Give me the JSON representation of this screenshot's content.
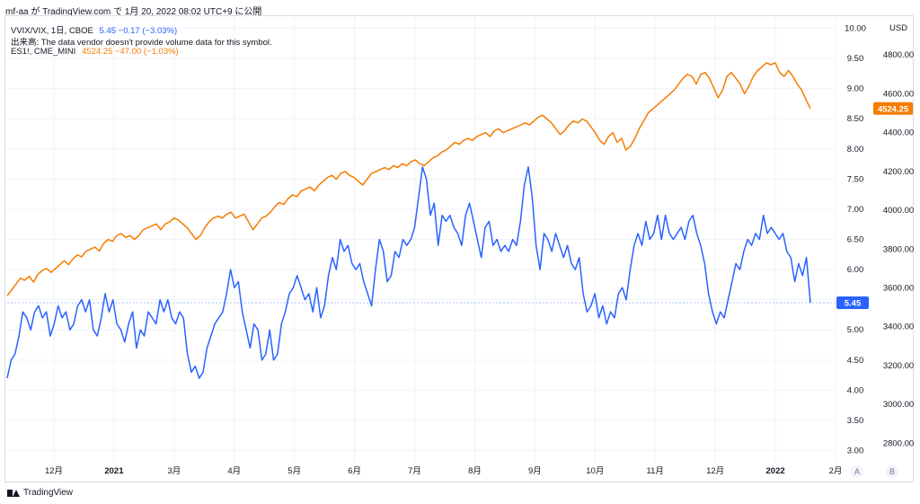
{
  "header": {
    "published": "mf-aa が TradingView.com で 1月 20, 2022 08:02 UTC+9 に公開"
  },
  "legend": {
    "vvix_symbol": "VVIX/VIX, 1日, CBOE",
    "vvix_values": "5.45 −0.17 (−3.03%)",
    "volume_note": "出来高: The data vendor doesn't provide volume data for this symbol.",
    "es_symbol": "ES1!, CME_MINI",
    "es_values": "4524.25 −47.00 (−1.03%)"
  },
  "footer": {
    "brand": "TradingView"
  },
  "buttons": {
    "auto": "A",
    "log": "B"
  },
  "colors": {
    "vvix": "#2962ff",
    "es": "#f57c00",
    "grid": "#f0f3fa"
  },
  "chart_data": {
    "type": "line",
    "x_tick_labels": [
      "12月",
      "2021",
      "3月",
      "4月",
      "5月",
      "6月",
      "7月",
      "8月",
      "9月",
      "10月",
      "11月",
      "12月",
      "2022",
      "2月"
    ],
    "left_axis_labels": [
      "10.00",
      "9.50",
      "9.00",
      "8.50",
      "8.00",
      "7.50",
      "7.00",
      "6.50",
      "6.00",
      "5.50",
      "5.00",
      "4.50",
      "4.00",
      "3.50",
      "3.00"
    ],
    "right_axis_labels": [
      "4800.00",
      "4600.00",
      "4400.00",
      "4200.00",
      "4000.00",
      "3800.00",
      "3600.00",
      "3400.00",
      "3200.00",
      "3000.00",
      "2800.00"
    ],
    "right_axis_unit": "USD",
    "left_ylim": [
      2.8,
      10.2
    ],
    "right_ylim": [
      2700,
      5000
    ],
    "last_values": {
      "vvix": "5.45",
      "es": "4524.25"
    },
    "series": [
      {
        "key": "vvix",
        "values": [
          4.2,
          4.5,
          4.6,
          4.9,
          5.3,
          5.2,
          5.0,
          5.3,
          5.4,
          5.2,
          5.3,
          4.9,
          5.1,
          5.4,
          5.2,
          5.3,
          5.0,
          5.1,
          5.4,
          5.5,
          5.3,
          5.5,
          5.0,
          4.9,
          5.2,
          5.6,
          5.3,
          5.5,
          5.1,
          5.0,
          4.8,
          5.1,
          5.3,
          4.7,
          5.0,
          4.9,
          5.3,
          5.2,
          5.1,
          5.5,
          5.3,
          5.5,
          5.2,
          5.1,
          5.3,
          5.2,
          4.6,
          4.3,
          4.4,
          4.2,
          4.3,
          4.7,
          4.9,
          5.1,
          5.2,
          5.3,
          5.6,
          6.0,
          5.7,
          5.8,
          5.3,
          5.0,
          4.7,
          5.1,
          5.0,
          4.5,
          4.6,
          5.0,
          4.5,
          4.6,
          5.1,
          5.3,
          5.6,
          5.7,
          5.9,
          5.7,
          5.5,
          5.6,
          5.3,
          5.7,
          5.2,
          5.4,
          5.9,
          6.2,
          6.0,
          6.5,
          6.3,
          6.4,
          6.1,
          6.0,
          6.1,
          5.8,
          5.6,
          5.4,
          6.0,
          6.5,
          6.3,
          5.8,
          5.9,
          6.3,
          6.2,
          6.5,
          6.4,
          6.5,
          6.7,
          7.2,
          7.7,
          7.5,
          6.9,
          7.1,
          6.4,
          6.9,
          6.8,
          6.9,
          6.7,
          6.6,
          6.4,
          6.9,
          7.1,
          6.8,
          6.5,
          6.2,
          6.7,
          6.8,
          6.4,
          6.5,
          6.3,
          6.4,
          6.3,
          6.5,
          6.4,
          6.8,
          7.4,
          7.7,
          7.2,
          6.4,
          6.0,
          6.6,
          6.5,
          6.3,
          6.6,
          6.4,
          6.2,
          6.4,
          6.1,
          6.0,
          6.2,
          5.6,
          5.3,
          5.4,
          5.6,
          5.2,
          5.4,
          5.1,
          5.3,
          5.2,
          5.6,
          5.7,
          5.5,
          6.0,
          6.4,
          6.6,
          6.4,
          6.8,
          6.5,
          6.6,
          6.9,
          6.5,
          6.9,
          6.6,
          6.5,
          6.6,
          6.7,
          6.5,
          6.8,
          6.9,
          6.6,
          6.4,
          6.1,
          5.6,
          5.3,
          5.1,
          5.3,
          5.2,
          5.5,
          5.8,
          6.1,
          6.0,
          6.3,
          6.5,
          6.4,
          6.6,
          6.5,
          6.9,
          6.6,
          6.7,
          6.6,
          6.5,
          6.6,
          6.3,
          6.2,
          5.8,
          6.1,
          5.9,
          6.2,
          5.45
        ]
      },
      {
        "key": "es",
        "values": [
          3560,
          3590,
          3620,
          3650,
          3640,
          3660,
          3630,
          3670,
          3690,
          3700,
          3680,
          3700,
          3720,
          3740,
          3720,
          3750,
          3770,
          3760,
          3790,
          3800,
          3810,
          3790,
          3830,
          3850,
          3840,
          3870,
          3880,
          3860,
          3870,
          3850,
          3870,
          3900,
          3910,
          3920,
          3930,
          3900,
          3930,
          3940,
          3960,
          3950,
          3930,
          3910,
          3880,
          3850,
          3870,
          3910,
          3940,
          3960,
          3970,
          3960,
          3980,
          3990,
          3960,
          3970,
          3980,
          3940,
          3900,
          3930,
          3960,
          3970,
          3990,
          4020,
          4040,
          4030,
          4060,
          4080,
          4070,
          4100,
          4110,
          4120,
          4100,
          4130,
          4150,
          4170,
          4180,
          4160,
          4190,
          4200,
          4180,
          4170,
          4150,
          4130,
          4160,
          4190,
          4200,
          4210,
          4220,
          4210,
          4230,
          4220,
          4240,
          4230,
          4250,
          4260,
          4240,
          4230,
          4250,
          4270,
          4280,
          4300,
          4310,
          4330,
          4350,
          4340,
          4360,
          4370,
          4360,
          4380,
          4390,
          4400,
          4380,
          4410,
          4420,
          4400,
          4410,
          4420,
          4430,
          4440,
          4450,
          4440,
          4460,
          4480,
          4490,
          4470,
          4450,
          4420,
          4390,
          4410,
          4440,
          4460,
          4450,
          4470,
          4460,
          4430,
          4400,
          4360,
          4340,
          4380,
          4400,
          4350,
          4370,
          4310,
          4330,
          4370,
          4420,
          4460,
          4500,
          4520,
          4540,
          4560,
          4580,
          4600,
          4620,
          4650,
          4680,
          4700,
          4690,
          4650,
          4700,
          4710,
          4680,
          4630,
          4580,
          4620,
          4690,
          4710,
          4680,
          4650,
          4600,
          4640,
          4690,
          4720,
          4740,
          4760,
          4750,
          4760,
          4710,
          4690,
          4720,
          4690,
          4650,
          4620,
          4570,
          4524.25
        ]
      }
    ]
  }
}
